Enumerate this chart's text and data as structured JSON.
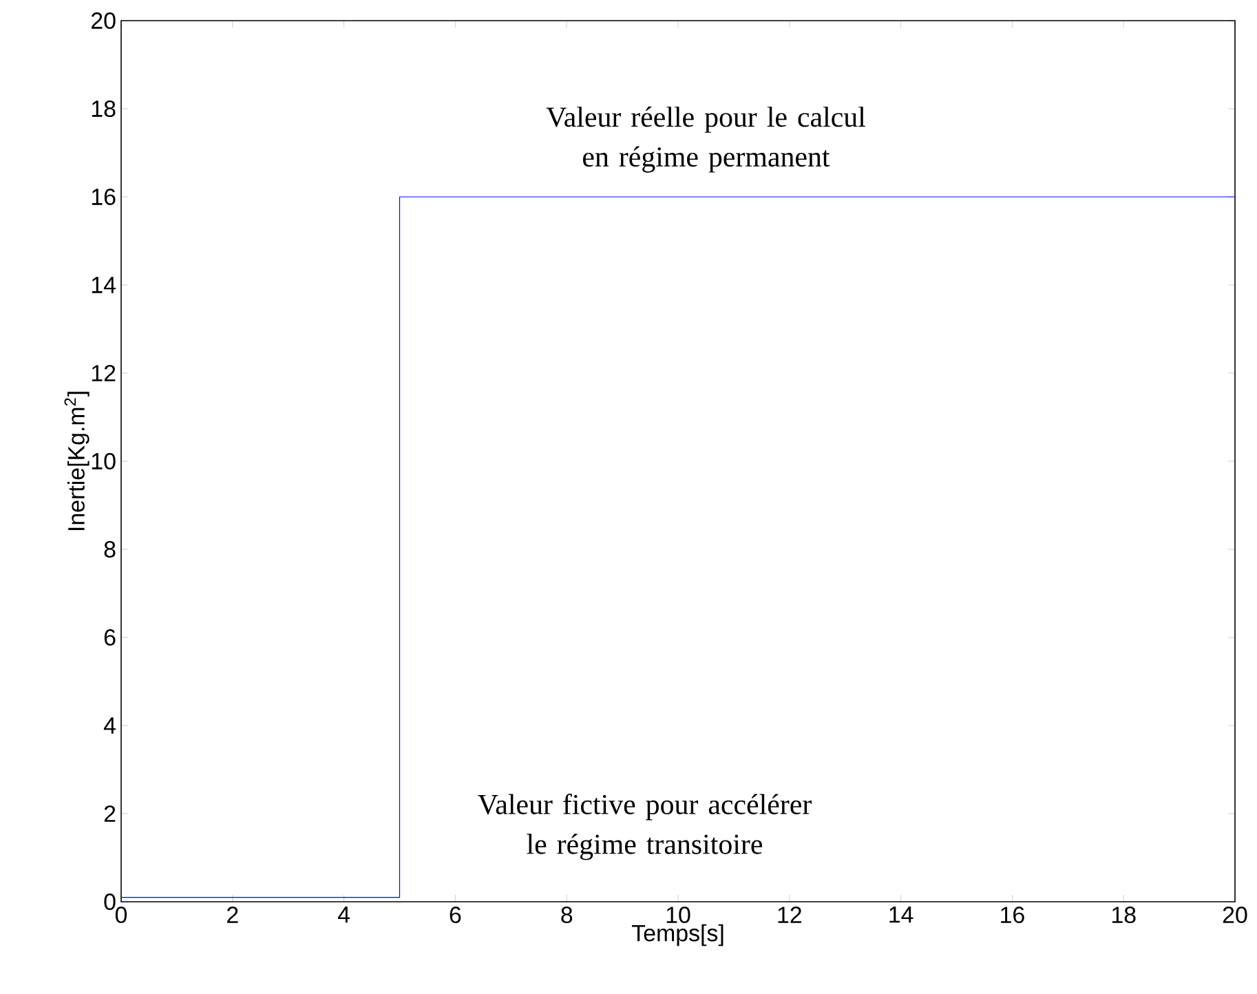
{
  "chart_data": {
    "type": "step",
    "xlabel": "Temps[s]",
    "ylabel": "Inertie[Kg.m$^{2}$]",
    "x": [
      0,
      5,
      20
    ],
    "series": [
      {
        "color": "#0000ff",
        "values": [
          0.1,
          16,
          16
        ]
      }
    ],
    "xlim": [
      0,
      20
    ],
    "ylim": [
      0,
      20
    ],
    "xticks": [
      0,
      2,
      4,
      6,
      8,
      10,
      12,
      14,
      16,
      18,
      20
    ],
    "yticks": [
      0,
      2,
      4,
      6,
      8,
      10,
      12,
      14,
      16,
      18,
      20
    ],
    "annotations": [
      "Valeur réelle pour le calcul en régime permanent",
      "Valeur fictive pour accélérer le régime transitoire"
    ]
  }
}
